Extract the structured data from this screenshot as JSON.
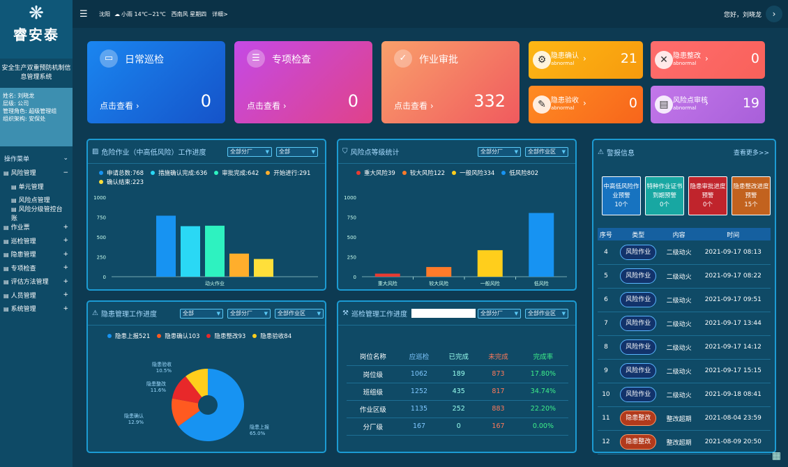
{
  "sidebar": {
    "logo": "睿安泰",
    "system_name": "安全生产双重预防机制信息管理系统",
    "user": [
      "姓名: 刘晓龙",
      "层级: 公司",
      "管理角色: 超级管理组",
      "组织架构: 安保处"
    ],
    "menu_title": "操作菜单",
    "items": [
      {
        "label": "风险管理",
        "toggle": "−",
        "sub": false
      },
      {
        "label": "单元管理",
        "toggle": "",
        "sub": true
      },
      {
        "label": "风险点管理",
        "toggle": "",
        "sub": true
      },
      {
        "label": "风险分级管控台账",
        "toggle": "",
        "sub": true
      },
      {
        "label": "作业票",
        "toggle": "+",
        "sub": false
      },
      {
        "label": "巡检管理",
        "toggle": "+",
        "sub": false
      },
      {
        "label": "隐患管理",
        "toggle": "+",
        "sub": false
      },
      {
        "label": "专项检查",
        "toggle": "+",
        "sub": false
      },
      {
        "label": "评估方法管理",
        "toggle": "+",
        "sub": false
      },
      {
        "label": "人员管理",
        "toggle": "+",
        "sub": false
      },
      {
        "label": "系统管理",
        "toggle": "+",
        "sub": false
      }
    ]
  },
  "topbar": {
    "city": "沈阳",
    "weather": "小雨 14℃~21℃",
    "wind": "西南风 星期四",
    "detail": "详细>",
    "greeting": "您好，刘晓龙"
  },
  "big_cards": [
    {
      "title": "日常巡检",
      "view": "点击查看 ›",
      "value": "0",
      "color1": "#1a86f0",
      "color2": "#1553c9"
    },
    {
      "title": "专项检查",
      "view": "点击查看 ›",
      "value": "0",
      "color1": "#c44ae6",
      "color2": "#e0428a"
    },
    {
      "title": "作业审批",
      "view": "点击查看 ›",
      "value": "332",
      "color1": "#f9a06b",
      "color2": "#f05a5e"
    }
  ],
  "small_cards": [
    {
      "title": "隐患确认",
      "sub": "abnormal",
      "value": "21",
      "color1": "#fdb715",
      "color2": "#f79a0d"
    },
    {
      "title": "隐患整改",
      "sub": "abnormal",
      "value": "0",
      "color1": "#ff6d6d",
      "color2": "#f8615a"
    },
    {
      "title": "隐患验收",
      "sub": "abnormal",
      "value": "0",
      "color1": "#ff8b22",
      "color2": "#f7651b"
    },
    {
      "title": "风险点审核",
      "sub": "abnormal",
      "value": "19",
      "color1": "#c377ea",
      "color2": "#a85fd9"
    }
  ],
  "panel_risk_work": {
    "title": "危险作业（中高低风险）工作进度",
    "selects": [
      "全部分厂",
      "全部"
    ],
    "legend": [
      {
        "label": "申请总数:768",
        "color": "#1793f2"
      },
      {
        "label": "措施确认完成:636",
        "color": "#2ad8f5"
      },
      {
        "label": "审批完成:642",
        "color": "#2ef2c0"
      },
      {
        "label": "开始进行:291",
        "color": "#ffae2c"
      },
      {
        "label": "确认结束:223",
        "color": "#ffdf3a"
      }
    ]
  },
  "panel_risk_level": {
    "title": "风险点等级统计",
    "selects": [
      "全部分厂",
      "全部作业区"
    ],
    "legend": [
      {
        "label": "重大风险39",
        "color": "#e83b32"
      },
      {
        "label": "较大风险122",
        "color": "#ff7b2a"
      },
      {
        "label": "一般风险334",
        "color": "#ffce1c"
      },
      {
        "label": "低风险802",
        "color": "#1793f2"
      }
    ]
  },
  "panel_hazard": {
    "title": "隐患管理工作进度",
    "selects": [
      "全部",
      "全部分厂",
      "全部作业区"
    ],
    "legend": [
      {
        "label": "隐患上报521",
        "color": "#1793f2"
      },
      {
        "label": "隐患确认103",
        "color": "#ff5a20"
      },
      {
        "label": "隐患整改93",
        "color": "#e8282a"
      },
      {
        "label": "隐患验收84",
        "color": "#ffce1c"
      }
    ]
  },
  "panel_inspect": {
    "title": "巡检管理工作进度",
    "selects": [
      "全部分厂",
      "全部作业区"
    ],
    "headers": [
      "岗位名称",
      "应巡检",
      "已完成",
      "未完成",
      "完成率"
    ],
    "rows": [
      [
        "岗位级",
        "1062",
        "189",
        "873",
        "17.80%"
      ],
      [
        "班组级",
        "1252",
        "435",
        "817",
        "34.74%"
      ],
      [
        "作业区级",
        "1135",
        "252",
        "883",
        "22.20%"
      ],
      [
        "分厂级",
        "167",
        "0",
        "167",
        "0.00%"
      ]
    ]
  },
  "panel_alert": {
    "title": "警报信息",
    "more": "查看更多>>",
    "cards": [
      {
        "title": "中高低风险作业预警",
        "count": "10个",
        "color": "#1773c0"
      },
      {
        "title": "特种作业证书到期预警",
        "count": "0个",
        "color": "#18a7a2"
      },
      {
        "title": "隐患审批进度预警",
        "count": "0个",
        "color": "#c0242c"
      },
      {
        "title": "隐患整改进度预警",
        "count": "15个",
        "color": "#c2621e"
      }
    ],
    "headers": [
      "序号",
      "类型",
      "内容",
      "时间"
    ],
    "rows": [
      [
        "4",
        "风险作业",
        "二级动火",
        "2021-09-17 08:13"
      ],
      [
        "5",
        "风险作业",
        "二级动火",
        "2021-09-17 08:22"
      ],
      [
        "6",
        "风险作业",
        "二级动火",
        "2021-09-17 09:51"
      ],
      [
        "7",
        "风险作业",
        "二级动火",
        "2021-09-17 13:44"
      ],
      [
        "8",
        "风险作业",
        "二级动火",
        "2021-09-17 14:12"
      ],
      [
        "9",
        "风险作业",
        "二级动火",
        "2021-09-17 15:15"
      ],
      [
        "10",
        "风险作业",
        "二级动火",
        "2021-09-18 08:41"
      ],
      [
        "11",
        "隐患整改",
        "整改超期",
        "2021-08-04 23:59"
      ],
      [
        "12",
        "隐患整改",
        "整改超期",
        "2021-08-09 20:50"
      ]
    ]
  },
  "chart_data": [
    {
      "type": "bar",
      "title": "危险作业（中高低风险）工作进度",
      "categories": [
        "动火作业"
      ],
      "series": [
        {
          "name": "申请总数",
          "values": [
            768
          ]
        },
        {
          "name": "措施确认完成",
          "values": [
            636
          ]
        },
        {
          "name": "审批完成",
          "values": [
            642
          ]
        },
        {
          "name": "开始进行",
          "values": [
            291
          ]
        },
        {
          "name": "确认结束",
          "values": [
            223
          ]
        }
      ],
      "ylim": [
        0,
        1000
      ],
      "yticks": [
        "0",
        "250",
        "500",
        "750",
        "1000"
      ]
    },
    {
      "type": "bar",
      "title": "风险点等级统计",
      "categories": [
        "重大风险",
        "较大风险",
        "一般风险",
        "低风险"
      ],
      "values": [
        39,
        122,
        334,
        802
      ],
      "ylim": [
        0,
        1000
      ],
      "yticks": [
        "0",
        "250",
        "500",
        "750",
        "1000"
      ]
    },
    {
      "type": "pie",
      "title": "隐患管理工作进度",
      "labels": [
        "隐患上报",
        "隐患确认",
        "隐患整改",
        "隐患验收"
      ],
      "values": [
        521,
        103,
        93,
        84
      ],
      "percent_labels": [
        "65.0%",
        "12.9%",
        "11.6%",
        "10.5%"
      ]
    }
  ]
}
